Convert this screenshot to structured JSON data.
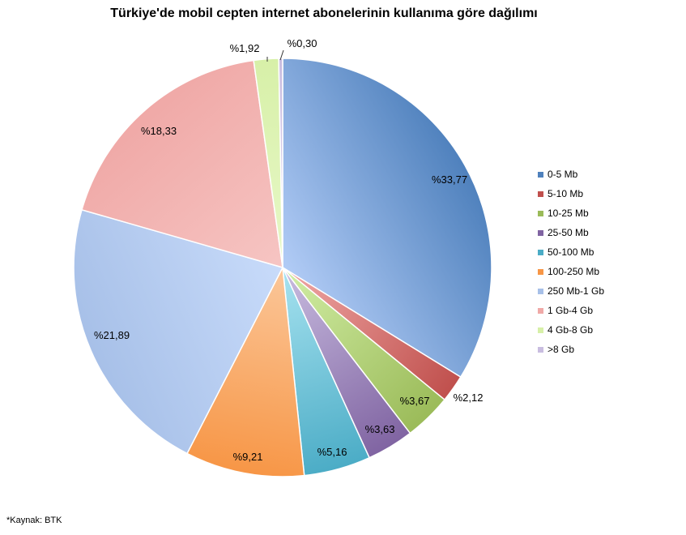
{
  "chart_data": {
    "type": "pie",
    "title": "Türkiye'de mobil cepten internet abonelerinin kullanıma göre dağılımı",
    "categories": [
      "0-5 Mb",
      "5-10 Mb",
      "10-25 Mb",
      "25-50 Mb",
      "50-100 Mb",
      "100-250 Mb",
      "250 Mb-1 Gb",
      "1 Gb-4 Gb",
      "4 Gb-8 Gb",
      ">8 Gb"
    ],
    "values": [
      33.77,
      2.12,
      3.67,
      3.63,
      5.16,
      9.21,
      21.89,
      18.33,
      1.92,
      0.3
    ],
    "labels": [
      "%33,77",
      "%2,12",
      "%3,67",
      "%3,63",
      "%5,16",
      "%9,21",
      "%21,89",
      "%18,33",
      "%1,92",
      "%0,30"
    ],
    "colors": [
      "#4F81BD",
      "#C0504D",
      "#9BBB59",
      "#8064A2",
      "#4BACC6",
      "#F79646",
      "#A7C0E8",
      "#F0A9A7",
      "#D7F0A8",
      "#C9BDE0"
    ],
    "light_colors": [
      "#B2CCF6",
      "#F0A9A7",
      "#D2EEA6",
      "#C9BDE0",
      "#A8E3F0",
      "#FBC79A",
      "#C8DBFA",
      "#F6C5C3",
      "#E8F8C8",
      "#E2DAF0"
    ],
    "legend_position": "right"
  },
  "footer": {
    "source": "*Kaynak: BTK"
  }
}
